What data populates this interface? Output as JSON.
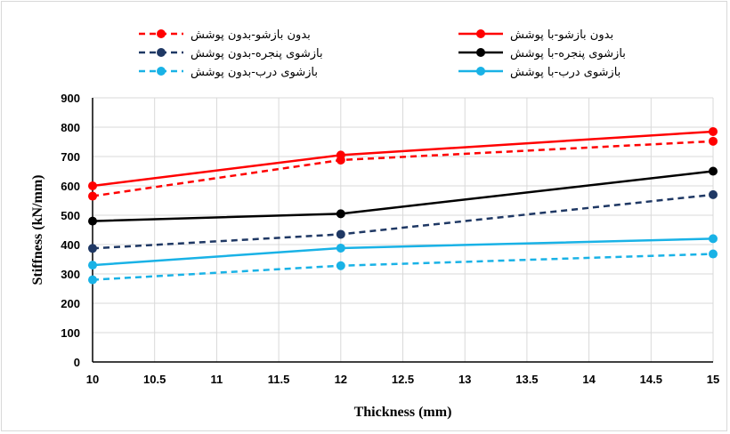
{
  "chart_data": {
    "type": "line",
    "xlabel": "Thickness (mm)",
    "ylabel": "Stiffness (kN/mm)",
    "xlim": [
      10,
      15
    ],
    "ylim": [
      0,
      900
    ],
    "x_ticks": [
      "10",
      "10.5",
      "11",
      "11.5",
      "12",
      "12.5",
      "13",
      "13.5",
      "14",
      "14.5",
      "15"
    ],
    "y_ticks": [
      "0",
      "100",
      "200",
      "300",
      "400",
      "500",
      "600",
      "700",
      "800",
      "900"
    ],
    "grid": true,
    "legend_position": "top",
    "x": [
      10,
      12,
      15
    ],
    "series": [
      {
        "name": "بدون بازشو-بدون پوشش",
        "values": [
          565,
          688,
          752
        ],
        "color": "#ff0000",
        "dashed": true
      },
      {
        "name": "بدون بازشو-با پوشش",
        "values": [
          600,
          705,
          785
        ],
        "color": "#ff0000",
        "dashed": false
      },
      {
        "name": "بازشوی پنجره-بدون پوشش",
        "values": [
          387,
          435,
          570
        ],
        "color": "#1f3864",
        "dashed": true
      },
      {
        "name": "بازشوی پنجره-با پوشش",
        "values": [
          480,
          505,
          650
        ],
        "color": "#000000",
        "dashed": false
      },
      {
        "name": "بازشوی درب-بدون پوشش",
        "values": [
          280,
          328,
          368
        ],
        "color": "#19b2e6",
        "dashed": true
      },
      {
        "name": "بازشوی درب-با پوشش",
        "values": [
          330,
          388,
          420
        ],
        "color": "#19b2e6",
        "dashed": false
      }
    ]
  }
}
